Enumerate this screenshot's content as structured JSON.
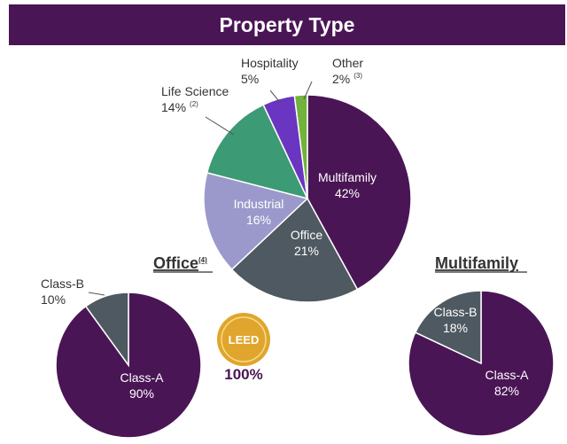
{
  "banner": {
    "title": "Property Type"
  },
  "chart_data": [
    {
      "id": "property",
      "type": "pie",
      "title": "Property Type",
      "slices": [
        {
          "name": "Multifamily",
          "value": 42,
          "pct_label": "42%",
          "color": "#4a1555",
          "label_style": "inside",
          "text": "light"
        },
        {
          "name": "Office",
          "value": 21,
          "pct_label": "21%",
          "color": "#4e5961",
          "label_style": "inside",
          "text": "light"
        },
        {
          "name": "Industrial",
          "value": 16,
          "pct_label": "16%",
          "color": "#9b99cb",
          "label_style": "inside",
          "text": "light"
        },
        {
          "name": "Life Science",
          "value": 14,
          "pct_label": "14%",
          "note": "(2)",
          "color": "#3c9a74",
          "label_style": "outside",
          "text": "dark"
        },
        {
          "name": "Hospitality",
          "value": 5,
          "pct_label": "5%",
          "color": "#6a35c0",
          "label_style": "outside",
          "text": "dark"
        },
        {
          "name": "Other",
          "value": 2,
          "pct_label": "2%",
          "note": "(3)",
          "color": "#72b33b",
          "label_style": "outside",
          "text": "dark"
        }
      ]
    },
    {
      "id": "office",
      "type": "pie",
      "title": "Office",
      "title_note": "(4)",
      "slices": [
        {
          "name": "Class-A",
          "value": 90,
          "pct_label": "90%",
          "color": "#4a1555",
          "label_style": "inside",
          "text": "light"
        },
        {
          "name": "Class-B",
          "value": 10,
          "pct_label": "10%",
          "color": "#4e5961",
          "label_style": "outside",
          "text": "dark"
        }
      ]
    },
    {
      "id": "multifamily",
      "type": "pie",
      "title": "Multifamily",
      "slices": [
        {
          "name": "Class-A",
          "value": 82,
          "pct_label": "82%",
          "color": "#4a1555",
          "label_style": "inside",
          "text": "light"
        },
        {
          "name": "Class-B",
          "value": 18,
          "pct_label": "18%",
          "color": "#4e5961",
          "label_style": "inside",
          "text": "light"
        }
      ]
    }
  ],
  "leed": {
    "badge_text": "LEED",
    "percent": "100%",
    "badge_color": "#e0a52c"
  }
}
